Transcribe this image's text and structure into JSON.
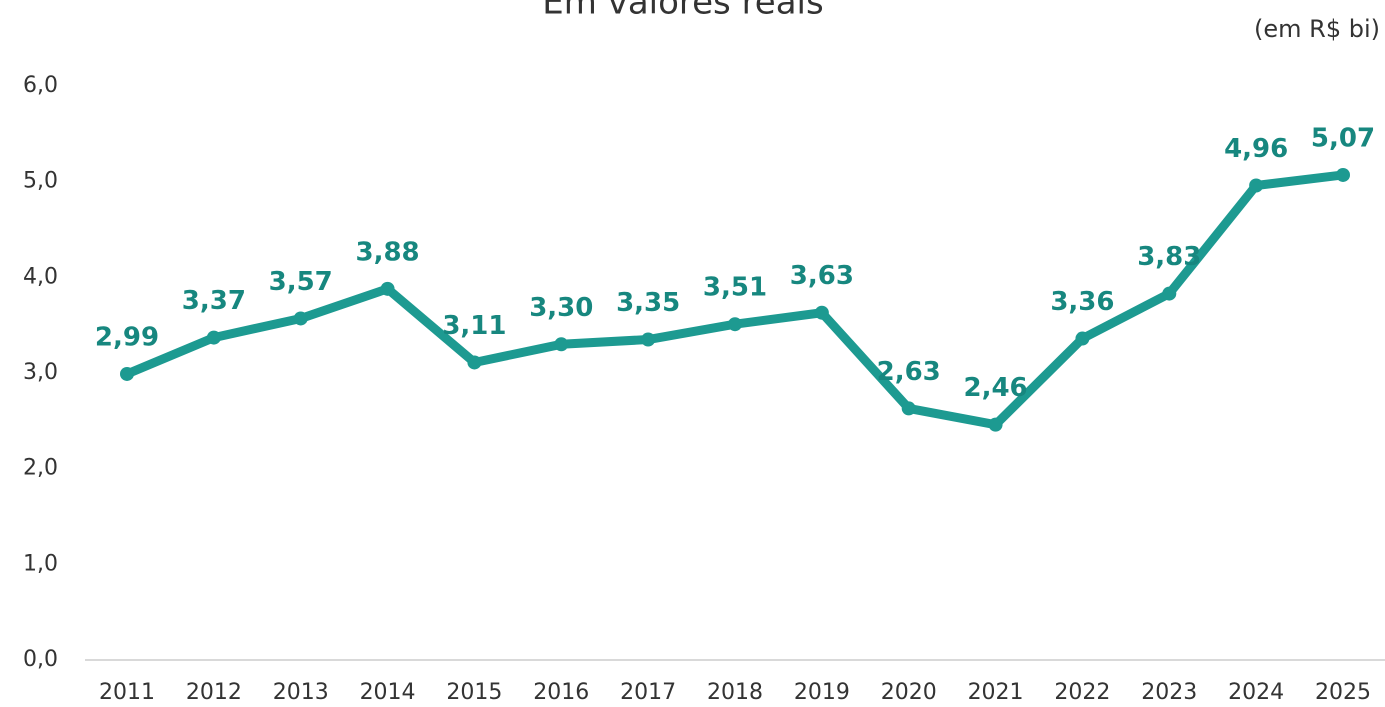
{
  "chart_data": {
    "type": "line",
    "title": "Em valores reais",
    "subtitle": "(em R$ bi)",
    "categories": [
      "2011",
      "2012",
      "2013",
      "2014",
      "2015",
      "2016",
      "2017",
      "2018",
      "2019",
      "2020",
      "2021",
      "2022",
      "2023",
      "2024",
      "2025"
    ],
    "series": [
      {
        "name": "Em valores reais",
        "color": "#1d9a91",
        "values": [
          2.99,
          3.37,
          3.57,
          3.88,
          3.11,
          3.3,
          3.35,
          3.51,
          3.63,
          2.63,
          2.46,
          3.36,
          3.83,
          4.96,
          5.07
        ],
        "value_labels": [
          "2,99",
          "3,37",
          "3,57",
          "3,88",
          "3,11",
          "3,30",
          "3,35",
          "3,51",
          "3,63",
          "2,63",
          "2,46",
          "3,36",
          "3,83",
          "4,96",
          "5,07"
        ]
      }
    ],
    "ylim": [
      0,
      6
    ],
    "yticks": [
      {
        "value": 0,
        "label": "0,0"
      },
      {
        "value": 1,
        "label": "1,0"
      },
      {
        "value": 2,
        "label": "2,0"
      },
      {
        "value": 3,
        "label": "3,0"
      },
      {
        "value": 4,
        "label": "4,0"
      },
      {
        "value": 5,
        "label": "5,0"
      },
      {
        "value": 6,
        "label": "6,0"
      }
    ],
    "grid": false
  }
}
